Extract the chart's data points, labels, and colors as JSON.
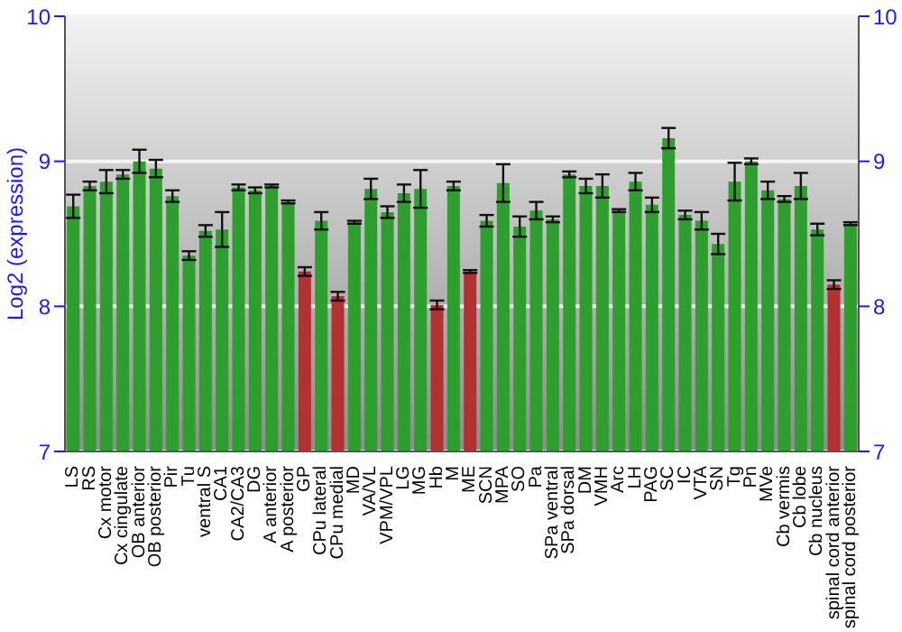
{
  "chart_data": {
    "type": "bar",
    "ylabel": "Log2 (expression)",
    "categories": [
      "LS",
      "RS",
      "Cx motor",
      "Cx cingulate",
      "OB anterior",
      "OB posterior",
      "Pir",
      "Tu",
      "ventral S",
      "CA1",
      "CA2/CA3",
      "DG",
      "A anterior",
      "A posterior",
      "GP",
      "CPu lateral",
      "CPu medial",
      "MD",
      "VA/VL",
      "VPM/VPL",
      "LG",
      "MG",
      "Hb",
      "M",
      "ME",
      "SCN",
      "MPA",
      "SO",
      "Pa",
      "SPa ventral",
      "SPa dorsal",
      "DM",
      "VMH",
      "Arc",
      "LH",
      "PAG",
      "SC",
      "IC",
      "VTA",
      "SN",
      "Tg",
      "Pn",
      "MVe",
      "Cb vermis",
      "Cb lobe",
      "Cb nucleus",
      "spinal cord anterior",
      "spinal cord posterior"
    ],
    "values": [
      8.69,
      8.83,
      8.86,
      8.91,
      9.0,
      8.95,
      8.76,
      8.35,
      8.52,
      8.53,
      8.82,
      8.8,
      8.83,
      8.72,
      8.24,
      8.59,
      8.07,
      8.58,
      8.81,
      8.65,
      8.78,
      8.81,
      8.01,
      8.83,
      8.24,
      8.59,
      8.85,
      8.55,
      8.66,
      8.6,
      8.91,
      8.83,
      8.83,
      8.66,
      8.86,
      8.7,
      9.16,
      8.63,
      8.59,
      8.43,
      8.86,
      9.0,
      8.8,
      8.74,
      8.83,
      8.53,
      8.15,
      8.57
    ],
    "errors": [
      0.08,
      0.03,
      0.08,
      0.03,
      0.08,
      0.06,
      0.04,
      0.03,
      0.04,
      0.12,
      0.02,
      0.02,
      0.01,
      0.01,
      0.03,
      0.06,
      0.03,
      0.01,
      0.07,
      0.04,
      0.06,
      0.13,
      0.03,
      0.03,
      0.01,
      0.04,
      0.13,
      0.07,
      0.06,
      0.02,
      0.02,
      0.05,
      0.08,
      0.01,
      0.06,
      0.05,
      0.07,
      0.03,
      0.06,
      0.07,
      0.13,
      0.02,
      0.06,
      0.02,
      0.09,
      0.04,
      0.03,
      0.01
    ],
    "colors": [
      "#2e9e2e",
      "#2e9e2e",
      "#2e9e2e",
      "#2e9e2e",
      "#2e9e2e",
      "#2e9e2e",
      "#2e9e2e",
      "#2e9e2e",
      "#2e9e2e",
      "#2e9e2e",
      "#2e9e2e",
      "#2e9e2e",
      "#2e9e2e",
      "#2e9e2e",
      "#b23232",
      "#2e9e2e",
      "#b23232",
      "#2e9e2e",
      "#2e9e2e",
      "#2e9e2e",
      "#2e9e2e",
      "#2e9e2e",
      "#b23232",
      "#2e9e2e",
      "#b23232",
      "#2e9e2e",
      "#2e9e2e",
      "#2e9e2e",
      "#2e9e2e",
      "#2e9e2e",
      "#2e9e2e",
      "#2e9e2e",
      "#2e9e2e",
      "#2e9e2e",
      "#2e9e2e",
      "#2e9e2e",
      "#2e9e2e",
      "#2e9e2e",
      "#2e9e2e",
      "#2e9e2e",
      "#2e9e2e",
      "#2e9e2e",
      "#2e9e2e",
      "#2e9e2e",
      "#2e9e2e",
      "#2e9e2e",
      "#b23232",
      "#2e9e2e"
    ],
    "ylim": [
      7,
      10
    ],
    "yticks": [
      7,
      8,
      9,
      10
    ],
    "y2lim": [
      7,
      10
    ],
    "y2ticks": [
      7,
      8,
      9,
      10
    ],
    "grid": "y"
  }
}
